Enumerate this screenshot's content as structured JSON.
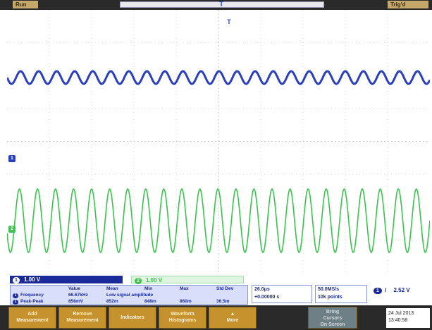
{
  "header": {
    "run_state": "Run",
    "trigger_status": "Trig'd",
    "trigger_position_glyph": "T"
  },
  "markers": {
    "ch1": "1",
    "ch2": "2",
    "trigger": "T"
  },
  "channels": [
    {
      "name": "1",
      "scale": "1.00 V",
      "color": "#2a3fbf"
    },
    {
      "name": "2",
      "scale": "1.00 V",
      "color": "#3cc24e"
    }
  ],
  "measurements": {
    "columns": [
      "Value",
      "Mean",
      "Min",
      "Max",
      "Std Dev"
    ],
    "rows": [
      {
        "channel": "1",
        "name": "Frequency",
        "value": "66.67kHz",
        "note": "Low signal amplitude"
      },
      {
        "channel": "1",
        "name": "Peak-Peak",
        "value": "856mV",
        "mean": "852m",
        "min": "848m",
        "max": "860m",
        "stddev": "36.5m"
      }
    ]
  },
  "timebase": {
    "horizontal": "26.0μs",
    "delay": "+0.00000 s"
  },
  "acquisition": {
    "sample_rate": "50.0MS/s",
    "record_length": "10k points"
  },
  "trigger": {
    "channel": "1",
    "slope": "/",
    "level": "2.52 V"
  },
  "softkeys": [
    {
      "label_1": "Add",
      "label_2": "Measurement",
      "enabled": true
    },
    {
      "label_1": "Remove",
      "label_2": "Measurement",
      "enabled": true
    },
    {
      "label_1": "Indicators",
      "label_2": "",
      "enabled": true
    },
    {
      "label_1": "Waveform",
      "label_2": "Histograms",
      "enabled": true
    },
    {
      "label_1": "More",
      "label_2": "",
      "enabled": true
    },
    {
      "label_1": "Bring",
      "label_2": "Cursors",
      "label_3": "On Screen",
      "enabled": false
    }
  ],
  "date": {
    "day": "24 Jul  2013",
    "time": "13:40:58"
  },
  "colors": {
    "ch1": "#2a3fbf",
    "ch2": "#3cc24e",
    "softkey": "#c6922e",
    "grid": "#c8c8c8"
  }
}
